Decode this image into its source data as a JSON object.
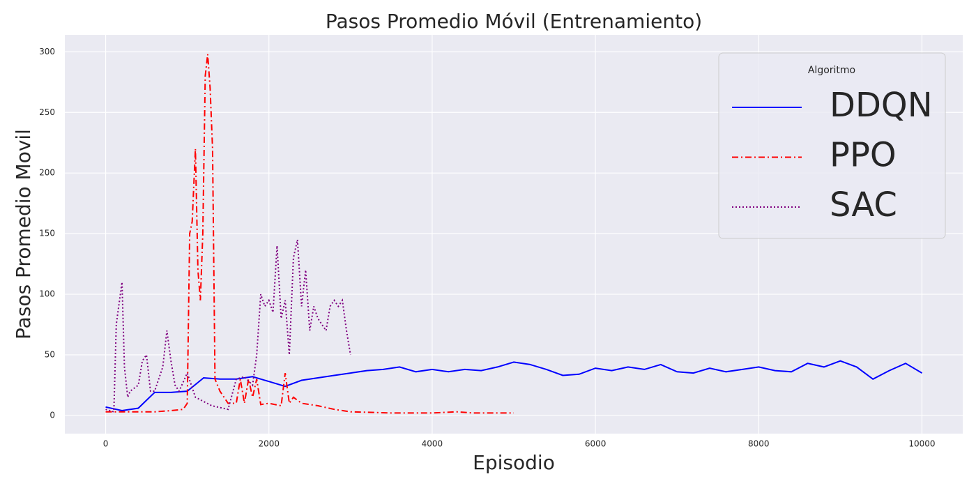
{
  "chart_data": {
    "type": "line",
    "title": "Pasos Promedio Móvil (Entrenamiento)",
    "xlabel": "Episodio",
    "ylabel": "Pasos Promedio Movil",
    "legend_title": "Algoritmo",
    "legend": "upper right",
    "grid": true,
    "xlim": [
      -500,
      10500
    ],
    "xticks": [
      0,
      2000,
      4000,
      6000,
      8000,
      10000
    ],
    "ylim": [
      -15,
      314
    ],
    "yticks": [
      0,
      50,
      100,
      150,
      200,
      250,
      300
    ],
    "series": [
      {
        "name": "DDQN",
        "color": "#0000ff",
        "dash": "solid",
        "x": [
          0,
          200,
          400,
          600,
          800,
          1000,
          1200,
          1400,
          1600,
          1800,
          2000,
          2200,
          2400,
          2600,
          2800,
          3000,
          3200,
          3400,
          3600,
          3800,
          4000,
          4200,
          4400,
          4600,
          4800,
          5000,
          5200,
          5400,
          5600,
          5800,
          6000,
          6200,
          6400,
          6600,
          6800,
          7000,
          7200,
          7400,
          7600,
          7800,
          8000,
          8200,
          8400,
          8600,
          8800,
          9000,
          9200,
          9400,
          9600,
          9800,
          10000
        ],
        "values": [
          7,
          4,
          6,
          19,
          19,
          20,
          31,
          30,
          30,
          32,
          28,
          24,
          29,
          31,
          33,
          35,
          37,
          38,
          40,
          36,
          38,
          36,
          38,
          37,
          40,
          44,
          42,
          38,
          33,
          34,
          39,
          37,
          40,
          38,
          42,
          36,
          35,
          39,
          36,
          38,
          40,
          37,
          36,
          43,
          40,
          45,
          40,
          30,
          37,
          43,
          35
        ]
      },
      {
        "name": "PPO",
        "color": "#ff0000",
        "dash": "dashdot",
        "x": [
          0,
          200,
          400,
          600,
          800,
          950,
          1000,
          1030,
          1060,
          1100,
          1130,
          1160,
          1190,
          1220,
          1250,
          1280,
          1310,
          1340,
          1400,
          1500,
          1600,
          1650,
          1700,
          1750,
          1800,
          1850,
          1900,
          2000,
          2150,
          2200,
          2250,
          2300,
          2400,
          2600,
          2800,
          3000,
          3500,
          4000,
          4300,
          4500,
          5000
        ],
        "values": [
          3,
          3,
          3,
          3,
          4,
          5,
          10,
          150,
          160,
          220,
          120,
          95,
          150,
          280,
          298,
          270,
          220,
          30,
          20,
          10,
          10,
          30,
          10,
          30,
          15,
          30,
          9,
          10,
          8,
          35,
          10,
          15,
          10,
          8,
          5,
          3,
          2,
          2,
          3,
          2,
          2
        ]
      },
      {
        "name": "SAC",
        "color": "#800080",
        "dash": "dotted",
        "x": [
          0,
          100,
          130,
          150,
          200,
          230,
          270,
          300,
          400,
          450,
          500,
          550,
          600,
          700,
          750,
          800,
          850,
          900,
          1000,
          1100,
          1300,
          1500,
          1600,
          1700,
          1800,
          1850,
          1900,
          1950,
          2000,
          2050,
          2100,
          2150,
          2200,
          2250,
          2300,
          2350,
          2400,
          2450,
          2500,
          2550,
          2600,
          2650,
          2700,
          2750,
          2800,
          2850,
          2900,
          2950,
          3000
        ],
        "values": [
          5,
          3,
          75,
          85,
          110,
          40,
          15,
          20,
          25,
          45,
          50,
          20,
          20,
          40,
          70,
          45,
          25,
          20,
          35,
          15,
          8,
          5,
          30,
          32,
          25,
          50,
          100,
          90,
          95,
          85,
          140,
          80,
          95,
          50,
          130,
          145,
          90,
          120,
          70,
          90,
          80,
          75,
          70,
          90,
          95,
          90,
          95,
          70,
          50
        ]
      }
    ]
  }
}
